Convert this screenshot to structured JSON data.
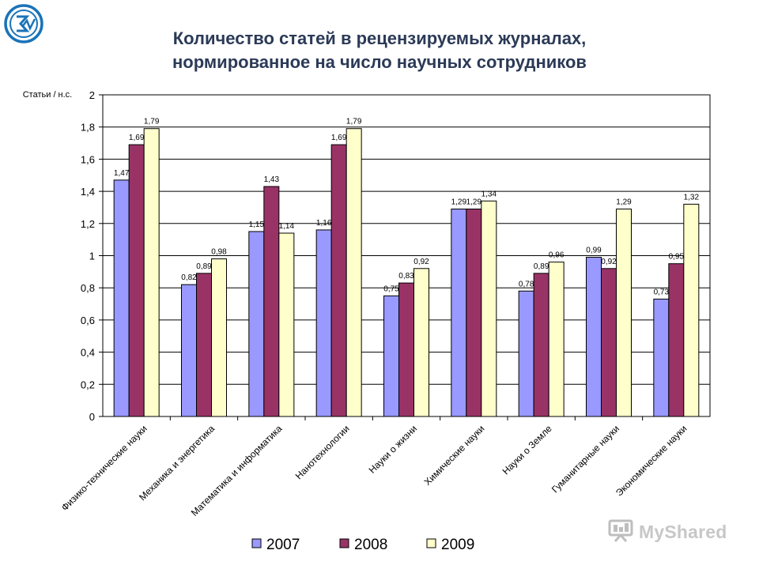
{
  "page": {
    "title_line1": "Количество статей в рецензируемых журналах,",
    "title_line2": "нормированное на число научных сотрудников",
    "logo_icon": "institute-logo-icon",
    "watermark_text": "MyShared",
    "watermark_icon": "presentation-board-icon"
  },
  "chart_data": {
    "type": "bar",
    "title": "Количество статей в рецензируемых журналах, нормированное на число научных сотрудников",
    "ylabel": "Статьи / н.с.",
    "xlabel": "",
    "ylim": [
      0,
      2
    ],
    "yticks": [
      0,
      0.2,
      0.4,
      0.6,
      0.8,
      1,
      1.2,
      1.4,
      1.6,
      1.8,
      2
    ],
    "ytick_labels": [
      "0",
      "0,2",
      "0,4",
      "0,6",
      "0,8",
      "1",
      "1,2",
      "1,4",
      "1,6",
      "1,8",
      "2"
    ],
    "grid": true,
    "legend_position": "bottom",
    "categories": [
      "Физико-технические науки",
      "Механика и энергетика",
      "Математика и информатика",
      "Нанотехнологии",
      "Науки о жизни",
      "Химические науки",
      "Науки о Земле",
      "Гуманитарные науки",
      "Экономические науки"
    ],
    "series": [
      {
        "name": "2007",
        "color": "#9999ff",
        "values": [
          1.47,
          0.82,
          1.15,
          1.16,
          0.75,
          1.29,
          0.78,
          0.99,
          0.73
        ],
        "labels": [
          "1,47",
          "0,82",
          "1,15",
          "1,16",
          "0,75",
          "1,29",
          "0,78",
          "0,99",
          "0,73"
        ]
      },
      {
        "name": "2008",
        "color": "#993366",
        "values": [
          1.69,
          0.89,
          1.43,
          1.69,
          0.83,
          1.29,
          0.89,
          0.92,
          0.95
        ],
        "labels": [
          "1,69",
          "0,89",
          "1,43",
          "1,69",
          "0,83",
          "1,29",
          "0,89",
          "0,92",
          "0,95"
        ]
      },
      {
        "name": "2009",
        "color": "#ffffcc",
        "values": [
          1.79,
          0.98,
          1.14,
          1.79,
          0.92,
          1.34,
          0.96,
          1.29,
          1.32
        ],
        "labels": [
          "1,79",
          "0,98",
          "1,14",
          "1,79",
          "0,92",
          "1,34",
          "0,96",
          "1,29",
          "1,32"
        ]
      }
    ]
  }
}
